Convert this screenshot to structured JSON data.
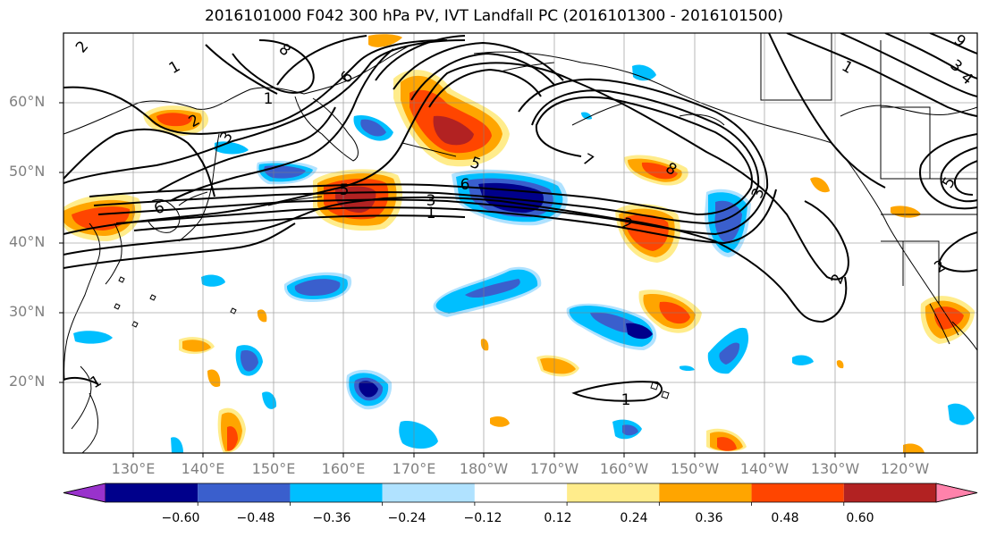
{
  "title": "2016101000 F042 300 hPa PV, IVT Landfall PC (2016101300 - 2016101500)",
  "latitude_labels": [
    "60°N",
    "50°N",
    "40°N",
    "30°N",
    "20°N"
  ],
  "longitude_labels": [
    "130°E",
    "140°E",
    "150°E",
    "160°E",
    "170°E",
    "180°W",
    "170°W",
    "160°W",
    "150°W",
    "140°W",
    "130°W",
    "120°W"
  ],
  "colorbar": {
    "ticks": [
      "−0.60",
      "−0.48",
      "−0.36",
      "−0.24",
      "−0.12",
      "0.12",
      "0.24",
      "0.36",
      "0.48",
      "0.60"
    ],
    "colors": [
      "#9932CC",
      "#00008B",
      "#3A5FCD",
      "#00BFFF",
      "#B0E2FF",
      "#FFFFFF",
      "#FFEC8B",
      "#FFA500",
      "#FF4500",
      "#B22222",
      "#FF82AB"
    ]
  },
  "contour_labels": [
    "2",
    "1",
    "8",
    "6",
    "3",
    "2",
    "6",
    "1",
    "5",
    "3",
    "1",
    "6",
    "5",
    "7",
    "8",
    "2",
    "3",
    "2",
    "1",
    "1",
    "3",
    "5",
    "4",
    "1",
    "2",
    "9"
  ]
}
